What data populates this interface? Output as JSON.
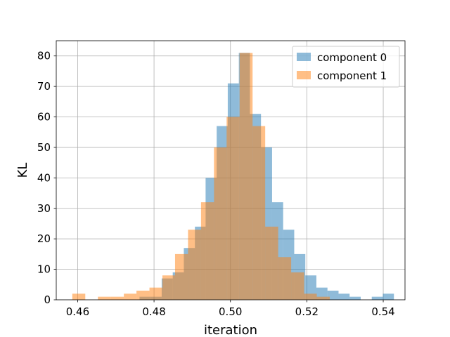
{
  "chart_data": {
    "type": "bar",
    "subtype": "overlapping-histogram",
    "title": "",
    "xlabel": "iteration",
    "ylabel": "KL",
    "xlim": [
      0.4544,
      0.5457
    ],
    "ylim": [
      0,
      85
    ],
    "xticks": [
      "0.46",
      "0.48",
      "0.50",
      "0.52",
      "0.54"
    ],
    "xtick_values": [
      0.46,
      0.48,
      0.5,
      0.52,
      0.54
    ],
    "yticks": [
      "0",
      "10",
      "20",
      "30",
      "40",
      "50",
      "60",
      "70",
      "80"
    ],
    "ytick_values": [
      0,
      10,
      20,
      30,
      40,
      50,
      60,
      70,
      80
    ],
    "grid": true,
    "legend_position": "top-right",
    "series": [
      {
        "name": "component 0",
        "color": "#1f77b4",
        "alpha": 0.5,
        "bin_edges": [
          0.4762,
          0.4791,
          0.482,
          0.4849,
          0.4878,
          0.4907,
          0.4935,
          0.4964,
          0.4993,
          0.5022,
          0.5051,
          0.508,
          0.5109,
          0.5138,
          0.5167,
          0.5196,
          0.5225,
          0.5254,
          0.5283,
          0.5312,
          0.5341,
          0.537,
          0.5399,
          0.5428
        ],
        "counts": [
          1,
          1,
          7,
          9,
          17,
          24,
          40,
          57,
          71,
          81,
          61,
          50,
          32,
          23,
          15,
          8,
          4,
          3,
          2,
          1,
          0,
          1,
          2
        ]
      },
      {
        "name": "component 1",
        "color": "#ff7f0e",
        "alpha": 0.5,
        "bin_edges": [
          0.4586,
          0.462,
          0.4653,
          0.4687,
          0.4721,
          0.4754,
          0.4788,
          0.4822,
          0.4855,
          0.4889,
          0.4923,
          0.4957,
          0.499,
          0.5024,
          0.5058,
          0.5091,
          0.5125,
          0.5159,
          0.5193,
          0.5226,
          0.526
        ],
        "counts": [
          2,
          0,
          1,
          1,
          2,
          3,
          4,
          8,
          15,
          23,
          32,
          50,
          60,
          81,
          57,
          24,
          14,
          9,
          2,
          1
        ]
      }
    ]
  }
}
